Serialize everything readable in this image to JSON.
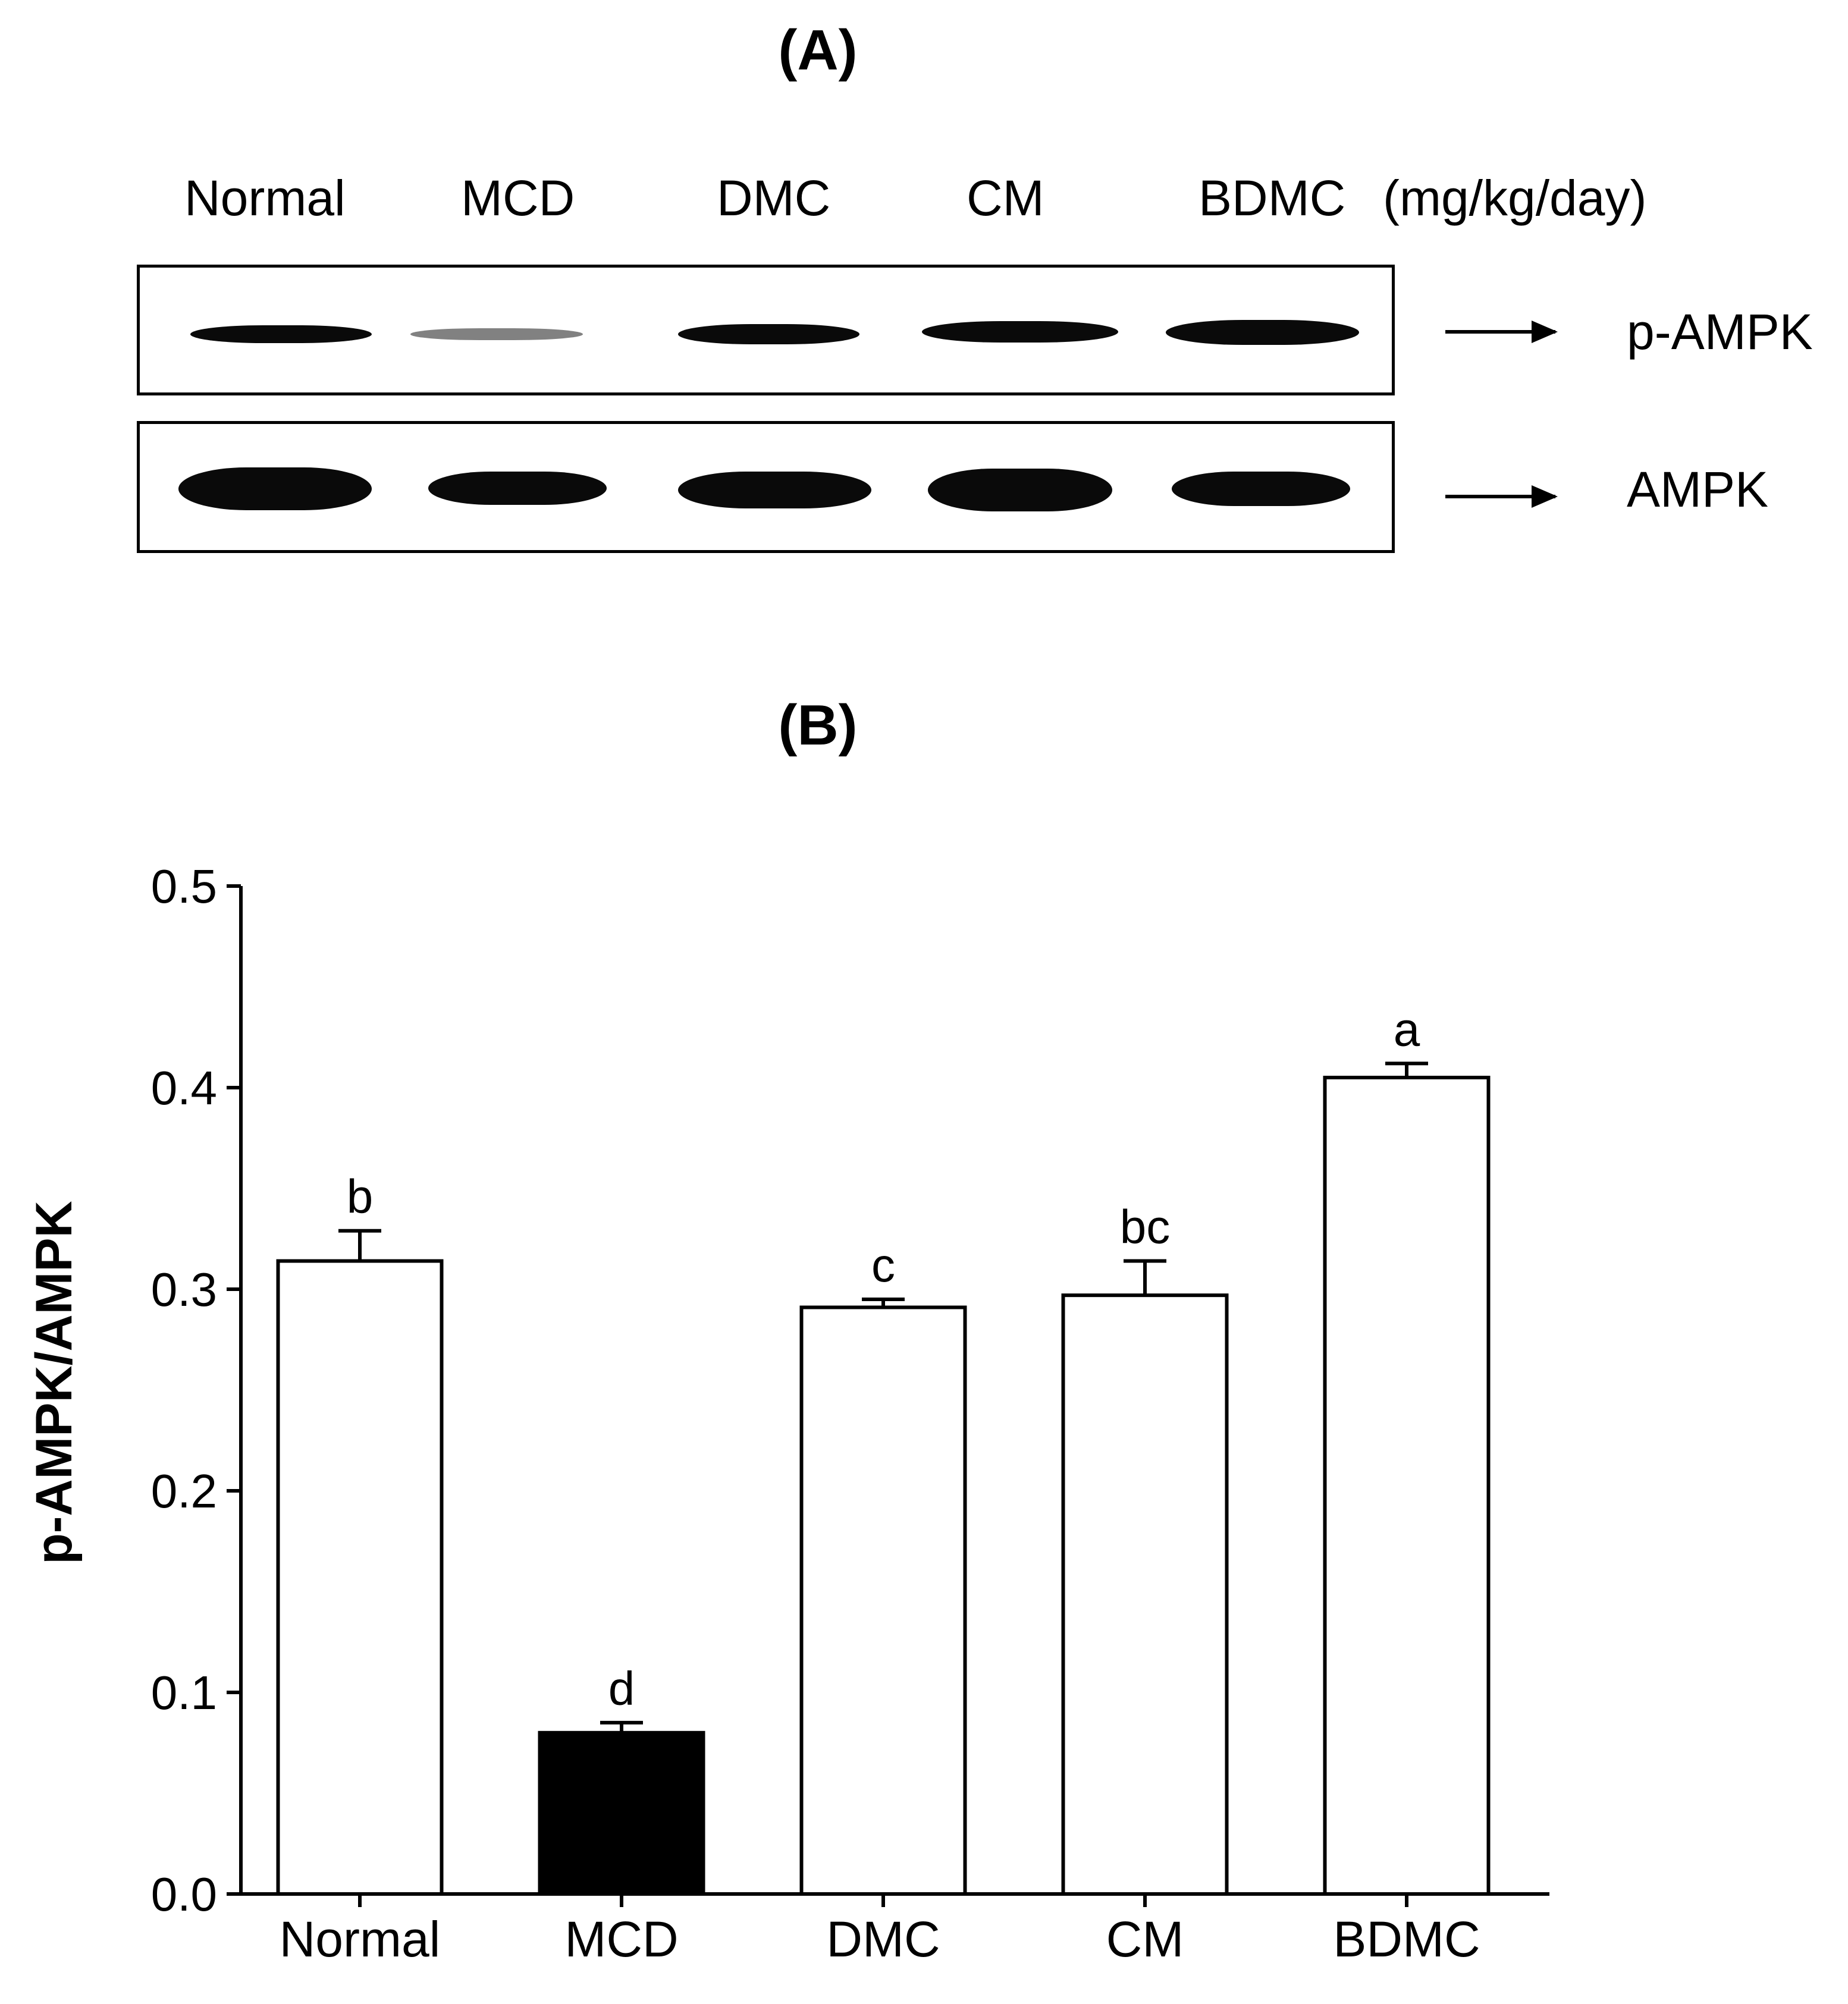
{
  "panel_a": {
    "label": "(A)",
    "lanes": [
      "Normal",
      "MCD",
      "DMC",
      "CM",
      "BDMC"
    ],
    "unit": "(mg/kg/day)",
    "rows": [
      {
        "protein": "p-AMPK"
      },
      {
        "protein": "AMPK"
      }
    ]
  },
  "panel_b": {
    "label": "(B)"
  },
  "chart_data": {
    "type": "bar",
    "categories": [
      "Normal",
      "MCD",
      "DMC",
      "CM",
      "BDMC"
    ],
    "values": [
      0.314,
      0.08,
      0.291,
      0.297,
      0.405
    ],
    "errors": [
      0.015,
      0.005,
      0.004,
      0.017,
      0.007
    ],
    "significance_letters": [
      "b",
      "d",
      "c",
      "bc",
      "a"
    ],
    "bar_fills": [
      "#ffffff",
      "#000000",
      "#ffffff",
      "#ffffff",
      "#ffffff"
    ],
    "ylabel": "p-AMPK/AMPK",
    "xlabel": "",
    "ylim": [
      0,
      0.5
    ],
    "yticks": [
      "0.0",
      "0.1",
      "0.2",
      "0.3",
      "0.4",
      "0.5"
    ],
    "grid": false
  }
}
